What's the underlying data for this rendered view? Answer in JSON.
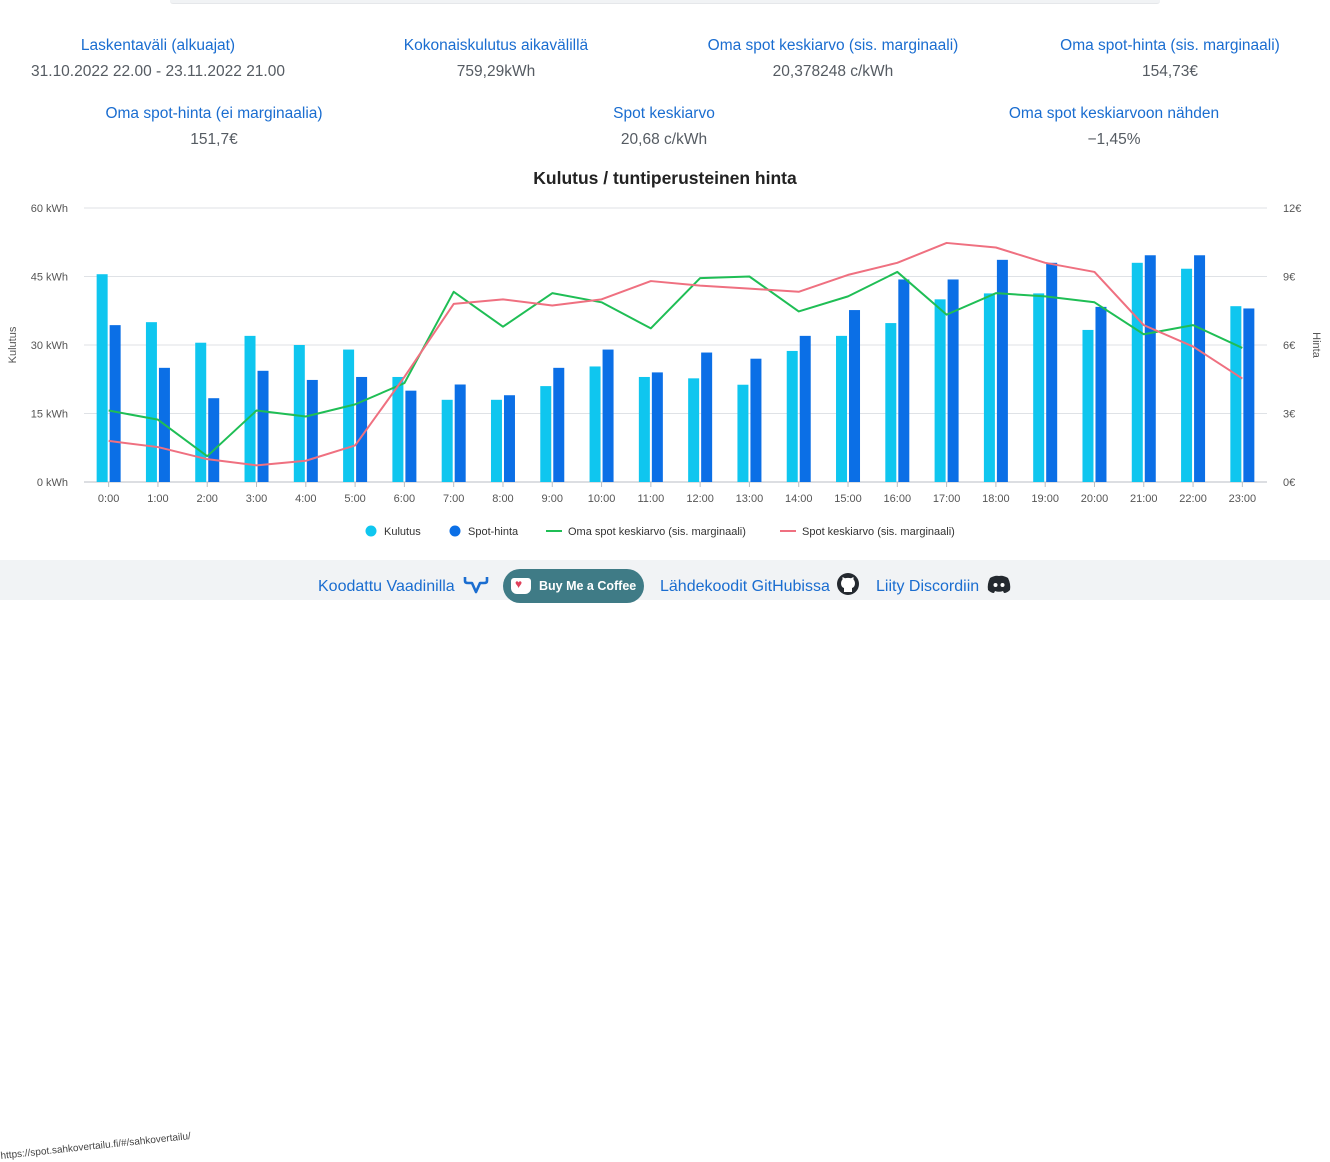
{
  "stats": [
    {
      "label": "Laskentaväli (alkuajat)",
      "value": "31.10.2022 22.00 - 23.11.2022 21.00"
    },
    {
      "label": "Kokonaiskulutus aikavälillä",
      "value": "759,29kWh"
    },
    {
      "label": "Oma spot keskiarvo (sis. marginaali)",
      "value": "20,378248 c/kWh"
    },
    {
      "label": "Oma spot-hinta (sis. marginaali)",
      "value": "154,73€"
    },
    {
      "label": "Oma spot-hinta (ei marginaalia)",
      "value": "151,7€"
    },
    {
      "label": "Spot keskiarvo",
      "value": "20,68 c/kWh"
    },
    {
      "label": "Oma spot keskiarvoon nähden",
      "value": "−1,45%"
    }
  ],
  "chart_data": {
    "type": "bar",
    "title": "Kulutus / tuntiperusteinen hinta",
    "categories": [
      "0:00",
      "1:00",
      "2:00",
      "3:00",
      "4:00",
      "5:00",
      "6:00",
      "7:00",
      "8:00",
      "9:00",
      "10:00",
      "11:00",
      "12:00",
      "13:00",
      "14:00",
      "15:00",
      "16:00",
      "17:00",
      "18:00",
      "19:00",
      "20:00",
      "21:00",
      "22:00",
      "23:00"
    ],
    "y_left": {
      "label": "Kulutus",
      "min": 0,
      "max": 60,
      "ticks": [
        0,
        15,
        30,
        45,
        60
      ],
      "tick_labels": [
        "0 kWh",
        "15 kWh",
        "30 kWh",
        "45 kWh",
        "60 kWh"
      ]
    },
    "y_right": {
      "label": "Hinta",
      "min": 0,
      "max": 12,
      "ticks": [
        0,
        3,
        6,
        9,
        12
      ],
      "tick_labels": [
        "0€",
        "3€",
        "6€",
        "9€",
        "12€"
      ]
    },
    "grid": true,
    "legend_position": "bottom",
    "series": [
      {
        "name": "Kulutus",
        "kind": "bar",
        "axis": "left",
        "color": "#0fc6ef",
        "values": [
          45.5,
          35,
          30.5,
          32,
          30,
          29,
          23,
          18,
          18,
          21,
          25.3,
          23,
          22.7,
          21.3,
          28.7,
          32,
          34.8,
          40,
          41.3,
          41.3,
          33.3,
          48,
          46.7,
          38.5
        ]
      },
      {
        "name": "Spot-hinta",
        "kind": "bar",
        "axis": "right",
        "color": "#0b6fe6",
        "values": [
          6.87,
          5.0,
          3.67,
          4.87,
          4.47,
          4.6,
          4.0,
          4.27,
          3.8,
          5.0,
          5.8,
          4.8,
          5.67,
          5.4,
          6.4,
          7.53,
          8.87,
          8.87,
          9.73,
          9.6,
          7.67,
          9.93,
          9.93,
          7.6
        ]
      },
      {
        "name": "Oma spot keskiarvo (sis. marginaali)",
        "kind": "line",
        "axis": "right",
        "color": "#1fbe55",
        "values": [
          3.13,
          2.73,
          1.13,
          3.13,
          2.87,
          3.4,
          4.33,
          8.33,
          6.8,
          8.27,
          7.87,
          6.73,
          8.93,
          9.0,
          7.47,
          8.13,
          9.2,
          7.33,
          8.27,
          8.13,
          7.87,
          6.47,
          6.87,
          5.87
        ]
      },
      {
        "name": "Spot keskiarvo (sis. marginaali)",
        "kind": "line",
        "axis": "right",
        "color": "#ef7080",
        "values": [
          1.8,
          1.53,
          1.0,
          0.73,
          0.93,
          1.6,
          4.6,
          7.8,
          8.0,
          7.73,
          8.0,
          8.8,
          8.6,
          8.47,
          8.33,
          9.07,
          9.6,
          10.47,
          10.27,
          9.6,
          9.2,
          6.87,
          5.93,
          4.53
        ]
      }
    ]
  },
  "footer": {
    "vaadin_label": "Koodattu Vaadinilla",
    "coffee_label": "Buy Me a Coffee",
    "github_label": "Lähdekoodit GitHubissa",
    "discord_label": "Liity Discordiin",
    "url_hint": "https://spot.sahkovertailu.fi/#/sahkovertailu/"
  }
}
